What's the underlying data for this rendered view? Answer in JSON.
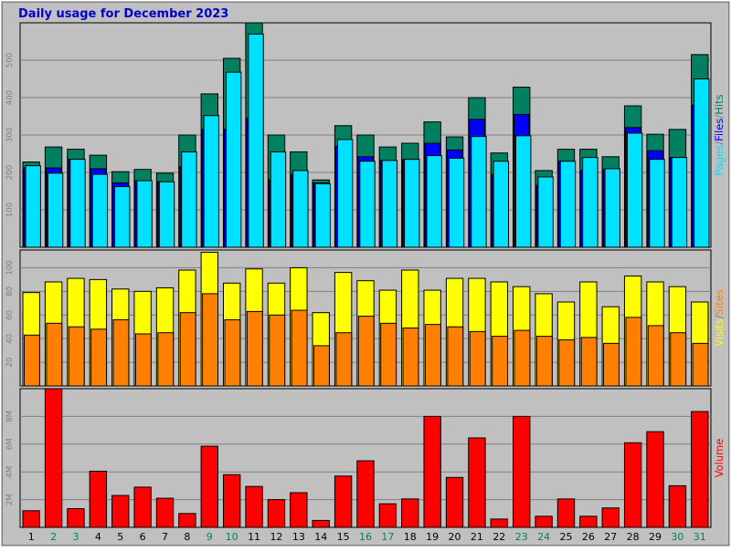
{
  "title": "Daily usage for December 2023",
  "colors": {
    "background": "#c0c0c0",
    "frame": "#8a8a8a",
    "title": "#0000cc",
    "hits": "#008060",
    "files": "#0000ff",
    "pages": "#00e0ff",
    "visits": "#ffff00",
    "sites": "#ff8000",
    "volume": "#ff0000"
  },
  "chart_data": [
    {
      "type": "bar",
      "panel": "hits-files-pages",
      "categories": [
        "1",
        "2",
        "3",
        "4",
        "5",
        "6",
        "7",
        "8",
        "9",
        "10",
        "11",
        "12",
        "13",
        "14",
        "15",
        "16",
        "17",
        "18",
        "19",
        "20",
        "21",
        "22",
        "23",
        "24",
        "25",
        "26",
        "27",
        "28",
        "29",
        "30",
        "31"
      ],
      "weekend_days": [
        "2",
        "3",
        "9",
        "10",
        "16",
        "17",
        "23",
        "24",
        "30",
        "31"
      ],
      "y_ticks": [
        "100",
        "200",
        "300",
        "400",
        "500"
      ],
      "ylim": [
        0,
        600
      ],
      "ylabel_parts": [
        "Pages",
        "Files",
        "Hits"
      ],
      "series": [
        {
          "name": "Hits",
          "color_key": "hits",
          "values": [
            228,
            268,
            262,
            246,
            202,
            208,
            198,
            300,
            410,
            505,
            600,
            300,
            255,
            180,
            325,
            300,
            268,
            278,
            335,
            295,
            400,
            252,
            428,
            205,
            262,
            262,
            242,
            378,
            302,
            315,
            515
          ]
        },
        {
          "name": "Files",
          "color_key": "files",
          "values": [
            212,
            212,
            235,
            210,
            172,
            178,
            175,
            215,
            315,
            315,
            345,
            180,
            195,
            172,
            270,
            242,
            232,
            235,
            278,
            260,
            342,
            195,
            355,
            165,
            230,
            205,
            208,
            320,
            258,
            240,
            380
          ]
        },
        {
          "name": "Pages",
          "color_key": "pages",
          "values": [
            218,
            198,
            235,
            195,
            162,
            178,
            175,
            255,
            352,
            468,
            570,
            255,
            205,
            170,
            288,
            230,
            232,
            235,
            245,
            238,
            296,
            230,
            298,
            188,
            230,
            240,
            210,
            305,
            235,
            240,
            450
          ]
        }
      ]
    },
    {
      "type": "bar",
      "panel": "visits-sites",
      "categories": [
        "1",
        "2",
        "3",
        "4",
        "5",
        "6",
        "7",
        "8",
        "9",
        "10",
        "11",
        "12",
        "13",
        "14",
        "15",
        "16",
        "17",
        "18",
        "19",
        "20",
        "21",
        "22",
        "23",
        "24",
        "25",
        "26",
        "27",
        "28",
        "29",
        "30",
        "31"
      ],
      "y_ticks": [
        "20",
        "40",
        "60",
        "80",
        "100"
      ],
      "ylim": [
        0,
        115
      ],
      "ylabel_parts": [
        "Visits",
        "Sites"
      ],
      "series": [
        {
          "name": "Visits",
          "color_key": "visits",
          "values": [
            79,
            88,
            91,
            90,
            82,
            80,
            83,
            98,
            113,
            87,
            99,
            87,
            100,
            62,
            96,
            89,
            81,
            98,
            81,
            91,
            91,
            88,
            84,
            78,
            71,
            88,
            67,
            93,
            88,
            84,
            71
          ]
        },
        {
          "name": "Sites",
          "color_key": "sites",
          "values": [
            43,
            53,
            50,
            48,
            56,
            44,
            45,
            62,
            78,
            56,
            63,
            60,
            64,
            34,
            45,
            59,
            53,
            49,
            52,
            50,
            46,
            42,
            47,
            42,
            39,
            41,
            36,
            58,
            51,
            45,
            36
          ]
        }
      ]
    },
    {
      "type": "bar",
      "panel": "volume",
      "categories": [
        "1",
        "2",
        "3",
        "4",
        "5",
        "6",
        "7",
        "8",
        "9",
        "10",
        "11",
        "12",
        "13",
        "14",
        "15",
        "16",
        "17",
        "18",
        "19",
        "20",
        "21",
        "22",
        "23",
        "24",
        "25",
        "26",
        "27",
        "28",
        "29",
        "30",
        "31"
      ],
      "y_ticks": [
        "2M",
        "4M",
        "6M",
        "8M"
      ],
      "ylim": [
        0,
        10
      ],
      "y_unit": "M",
      "ylabel_parts": [
        "Volume"
      ],
      "series": [
        {
          "name": "Volume",
          "color_key": "volume",
          "values": [
            1.2,
            10.0,
            1.35,
            4.05,
            2.3,
            2.9,
            2.1,
            1.0,
            5.85,
            3.8,
            2.95,
            2.0,
            2.5,
            0.5,
            3.7,
            4.8,
            1.7,
            2.05,
            8.0,
            3.6,
            6.45,
            0.6,
            8.0,
            0.8,
            2.05,
            0.8,
            1.4,
            6.1,
            6.9,
            3.0,
            8.35
          ]
        }
      ]
    }
  ]
}
